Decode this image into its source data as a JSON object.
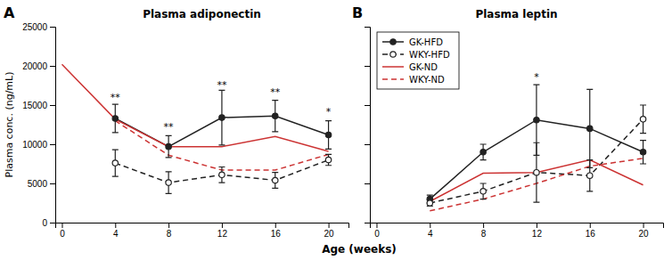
{
  "chart_data": [
    {
      "type": "line",
      "title": "Plasma adiponectin",
      "ylabel": "Plasma conc. (ng/mL)",
      "xlabel": "Age (weeks)",
      "xlim": [
        -0.5,
        21.5
      ],
      "xticks": [
        0,
        4,
        8,
        12,
        16,
        20
      ],
      "ylim": [
        0,
        25000
      ],
      "yticks": [
        0,
        5000,
        10000,
        15000,
        20000,
        25000
      ],
      "grid": false,
      "series": [
        {
          "x": [
            4,
            8,
            12,
            16,
            20
          ],
          "values": [
            13300,
            9700,
            13400,
            13600,
            11200
          ],
          "errors": [
            1800,
            1400,
            3500,
            2000,
            1800
          ],
          "color": "#222222",
          "marker": "circle",
          "line_style": "solid"
        },
        {
          "x": [
            4,
            8,
            12,
            16,
            20
          ],
          "values": [
            7600,
            5100,
            6100,
            5400,
            8000
          ],
          "errors": [
            1700,
            1400,
            1000,
            1000,
            700
          ],
          "color": "#222222",
          "marker": "open_circle",
          "line_style": "dashed"
        },
        {
          "x": [
            0,
            4,
            8,
            12,
            16,
            20
          ],
          "values": [
            20200,
            13200,
            9700,
            9700,
            11000,
            9100
          ],
          "color": "#cc3333",
          "marker": "none",
          "line_style": "solid"
        },
        {
          "x": [
            4,
            8,
            12,
            16,
            20
          ],
          "values": [
            13000,
            8600,
            6700,
            6700,
            8700
          ],
          "color": "#cc3333",
          "marker": "none",
          "line_style": "dashed"
        }
      ],
      "annotations": [
        {
          "text": "A"
        },
        {
          "x": 4,
          "y": 15600,
          "text": "**"
        },
        {
          "x": 8,
          "y": 11800,
          "text": "**"
        },
        {
          "x": 12,
          "y": 17200,
          "text": "**"
        },
        {
          "x": 16,
          "y": 16200,
          "text": "**"
        },
        {
          "x": 20,
          "y": 13800,
          "text": "*"
        }
      ]
    },
    {
      "type": "line",
      "title": "Plasma leptin",
      "xlim": [
        -0.5,
        21.5
      ],
      "xticks": [
        0,
        4,
        8,
        12,
        16,
        20
      ],
      "ylim": [
        0,
        25000
      ],
      "yticks": [
        0,
        5000,
        10000,
        15000,
        20000,
        25000
      ],
      "grid": false,
      "tick_labels": "x",
      "legend": "upper left",
      "series": [
        {
          "name": "GK-HFD",
          "x": [
            4,
            8,
            12,
            16,
            20
          ],
          "values": [
            3000,
            9000,
            13100,
            12000,
            9000
          ],
          "errors": [
            500,
            1000,
            4500,
            5000,
            1500
          ],
          "color": "#222222",
          "marker": "circle",
          "line_style": "solid"
        },
        {
          "name": "WKY-HFD",
          "x": [
            4,
            8,
            12,
            16,
            20
          ],
          "values": [
            2500,
            4000,
            6400,
            6000,
            13200
          ],
          "errors": [
            400,
            1000,
            3800,
            2000,
            1800
          ],
          "color": "#222222",
          "marker": "open_circle",
          "line_style": "dashed"
        },
        {
          "name": "GK-ND",
          "x": [
            4,
            8,
            12,
            16,
            20
          ],
          "values": [
            2700,
            6300,
            6400,
            8000,
            4800
          ],
          "color": "#cc3333",
          "marker": "none",
          "line_style": "solid"
        },
        {
          "name": "WKY-ND",
          "x": [
            4,
            8,
            12,
            16,
            20
          ],
          "values": [
            1500,
            3000,
            5000,
            7200,
            8200
          ],
          "color": "#cc3333",
          "marker": "none",
          "line_style": "dashed"
        }
      ],
      "annotations": [
        {
          "text": "B"
        },
        {
          "x": 12,
          "y": 18200,
          "text": "*"
        }
      ]
    }
  ]
}
